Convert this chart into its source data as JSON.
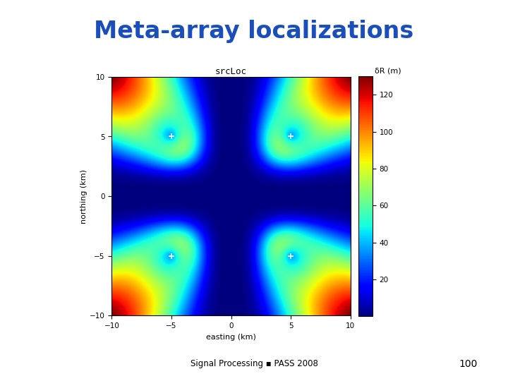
{
  "title": "Meta-array localizations",
  "title_bg": "#f0ee96",
  "title_color": "#1a4fbb",
  "plot_title": "srcLoc",
  "xlabel": "easting (km)",
  "ylabel": "northing (km)",
  "colorbar_label": "δR (m)",
  "x_range": [
    -10,
    10
  ],
  "y_range": [
    -10,
    10
  ],
  "cmap": "jet",
  "vmin": 0,
  "vmax": 130,
  "colorbar_ticks": [
    20,
    40,
    60,
    80,
    100,
    120
  ],
  "marker_positions": [
    [
      -5,
      5
    ],
    [
      5,
      5
    ],
    [
      -5,
      -5
    ],
    [
      5,
      -5
    ]
  ],
  "footer_text": "Signal Processing ▪ PASS 2008",
  "footer_page": "100",
  "bg_color": "#ffffff",
  "array_elements": [
    [
      -5,
      5
    ],
    [
      5,
      5
    ],
    [
      -5,
      -5
    ],
    [
      5,
      -5
    ]
  ],
  "scale": 5.0,
  "power": 2.0
}
